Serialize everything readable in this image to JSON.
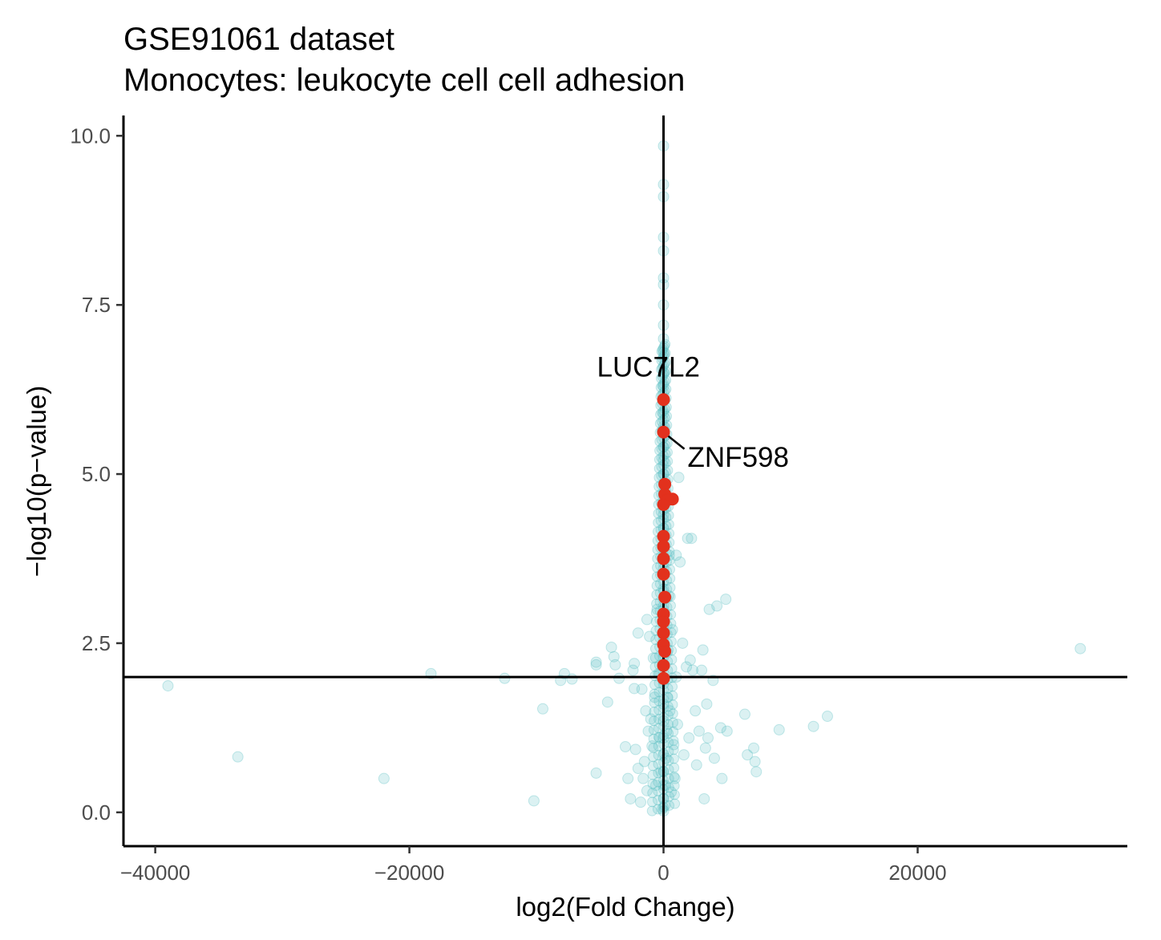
{
  "chart_data": {
    "type": "scatter",
    "title": "GSE91061 dataset",
    "subtitle": "Monocytes: leukocyte cell cell adhesion",
    "xlabel": "log2(Fold Change)",
    "ylabel": "−log10(p−value)",
    "xlim": [
      -42500,
      36500
    ],
    "ylim": [
      -0.5,
      10.3
    ],
    "x_ticks": [
      -40000,
      -20000,
      0,
      20000
    ],
    "x_tick_labels": [
      "−40000",
      "−20000",
      "0",
      "20000"
    ],
    "y_ticks": [
      0.0,
      2.5,
      5.0,
      7.5,
      10.0
    ],
    "y_tick_labels": [
      "0.0",
      "2.5",
      "5.0",
      "7.5",
      "10.0"
    ],
    "reference_lines": {
      "vertical_x": 0,
      "horizontal_y": 2.0
    },
    "colors": {
      "background_points": "#5bbfc4",
      "highlighted_points": "#e2311d",
      "axes": "#000000"
    },
    "background_series": {
      "points": [
        [
          -39000,
          1.87
        ],
        [
          -33500,
          0.82
        ],
        [
          -22000,
          0.5
        ],
        [
          -18300,
          2.05
        ],
        [
          -12500,
          1.98
        ],
        [
          -10200,
          0.17
        ],
        [
          -9500,
          1.53
        ],
        [
          -8100,
          1.95
        ],
        [
          -7800,
          2.05
        ],
        [
          -7200,
          1.97
        ],
        [
          -5300,
          2.18
        ],
        [
          -5300,
          2.22
        ],
        [
          -5300,
          0.58
        ],
        [
          -4400,
          1.63
        ],
        [
          -4100,
          2.44
        ],
        [
          -3900,
          2.3
        ],
        [
          -3800,
          2.18
        ],
        [
          -3500,
          1.98
        ],
        [
          -3000,
          0.97
        ],
        [
          -2800,
          0.5
        ],
        [
          -2600,
          0.2
        ],
        [
          -2400,
          2.1
        ],
        [
          -2300,
          2.2
        ],
        [
          -2300,
          1.83
        ],
        [
          -2200,
          0.93
        ],
        [
          -2000,
          0.65
        ],
        [
          -2000,
          2.65
        ],
        [
          -1800,
          0.15
        ],
        [
          -1700,
          1.82
        ],
        [
          -1600,
          0.5
        ],
        [
          -1500,
          0.75
        ],
        [
          -1400,
          1.5
        ],
        [
          -1300,
          2.85
        ],
        [
          -1300,
          0.32
        ],
        [
          -1200,
          1.2
        ],
        [
          -1100,
          2.6
        ],
        [
          -1000,
          1.38
        ],
        [
          -900,
          0.98
        ],
        [
          -800,
          2.28
        ],
        [
          -700,
          1.7
        ],
        [
          -600,
          0.4
        ],
        [
          -500,
          3.0
        ],
        [
          -400,
          2.05
        ],
        [
          -300,
          1.1
        ],
        [
          -200,
          0.6
        ],
        [
          -100,
          0.05
        ],
        [
          0,
          9.85
        ],
        [
          0,
          9.28
        ],
        [
          0,
          9.1
        ],
        [
          0,
          8.5
        ],
        [
          0,
          8.3
        ],
        [
          0,
          7.9
        ],
        [
          0,
          7.8
        ],
        [
          0,
          7.5
        ],
        [
          0,
          7.2
        ],
        [
          0,
          7.0
        ],
        [
          0,
          6.8
        ],
        [
          0,
          6.5
        ],
        [
          0,
          6.3
        ],
        [
          0,
          5.9
        ],
        [
          0,
          5.7
        ],
        [
          0,
          5.4
        ],
        [
          0,
          5.2
        ],
        [
          0,
          5.0
        ],
        [
          0,
          4.7
        ],
        [
          0,
          4.4
        ],
        [
          0,
          4.2
        ],
        [
          0,
          3.95
        ],
        [
          0,
          3.6
        ],
        [
          0,
          3.3
        ],
        [
          0,
          3.05
        ],
        [
          0,
          2.8
        ],
        [
          0,
          2.55
        ],
        [
          0,
          2.3
        ],
        [
          0,
          1.9
        ],
        [
          0,
          1.6
        ],
        [
          0,
          1.35
        ],
        [
          0,
          1.1
        ],
        [
          0,
          0.85
        ],
        [
          0,
          0.6
        ],
        [
          0,
          0.4
        ],
        [
          0,
          0.2
        ],
        [
          0,
          0.02
        ],
        [
          100,
          0.1
        ],
        [
          150,
          0.4
        ],
        [
          200,
          0.8
        ],
        [
          250,
          1.2
        ],
        [
          300,
          1.7
        ],
        [
          350,
          2.4
        ],
        [
          400,
          3.2
        ],
        [
          450,
          3.8
        ],
        [
          500,
          1.5
        ],
        [
          600,
          0.3
        ],
        [
          700,
          2.7
        ],
        [
          800,
          1.0
        ],
        [
          900,
          0.5
        ],
        [
          1000,
          3.8
        ],
        [
          1000,
          2.0
        ],
        [
          1100,
          1.3
        ],
        [
          1200,
          4.95
        ],
        [
          1300,
          3.7
        ],
        [
          1500,
          2.5
        ],
        [
          1600,
          0.85
        ],
        [
          1800,
          2.15
        ],
        [
          1900,
          4.05
        ],
        [
          2000,
          1.1
        ],
        [
          2100,
          2.25
        ],
        [
          2200,
          4.05
        ],
        [
          2300,
          2.1
        ],
        [
          2500,
          1.5
        ],
        [
          2600,
          0.7
        ],
        [
          2800,
          1.2
        ],
        [
          3000,
          2.1
        ],
        [
          3100,
          2.4
        ],
        [
          3200,
          0.2
        ],
        [
          3300,
          0.95
        ],
        [
          3400,
          1.6
        ],
        [
          3500,
          1.1
        ],
        [
          3600,
          3.0
        ],
        [
          3900,
          1.95
        ],
        [
          4000,
          0.8
        ],
        [
          4200,
          3.05
        ],
        [
          4500,
          1.25
        ],
        [
          4600,
          0.5
        ],
        [
          4900,
          3.15
        ],
        [
          5000,
          1.2
        ],
        [
          6400,
          1.45
        ],
        [
          6600,
          0.85
        ],
        [
          7100,
          0.95
        ],
        [
          7200,
          0.75
        ],
        [
          7300,
          0.6
        ],
        [
          9100,
          1.22
        ],
        [
          11800,
          1.27
        ],
        [
          12900,
          1.42
        ],
        [
          32800,
          2.42
        ]
      ]
    },
    "highlighted_series": {
      "points": [
        [
          0,
          6.1
        ],
        [
          0,
          5.62
        ],
        [
          100,
          4.85
        ],
        [
          100,
          4.7
        ],
        [
          700,
          4.63
        ],
        [
          300,
          4.62
        ],
        [
          0,
          4.55
        ],
        [
          0,
          4.08
        ],
        [
          0,
          3.93
        ],
        [
          0,
          3.75
        ],
        [
          0,
          3.52
        ],
        [
          100,
          3.18
        ],
        [
          0,
          2.93
        ],
        [
          0,
          2.82
        ],
        [
          0,
          2.65
        ],
        [
          0,
          2.48
        ],
        [
          100,
          2.38
        ],
        [
          0,
          2.17
        ],
        [
          0,
          1.98
        ]
      ]
    },
    "annotations": [
      {
        "text": "LUC7L2",
        "x": 0,
        "y": 6.1
      },
      {
        "text": "ZNF598",
        "x": 0,
        "y": 5.62
      }
    ]
  }
}
